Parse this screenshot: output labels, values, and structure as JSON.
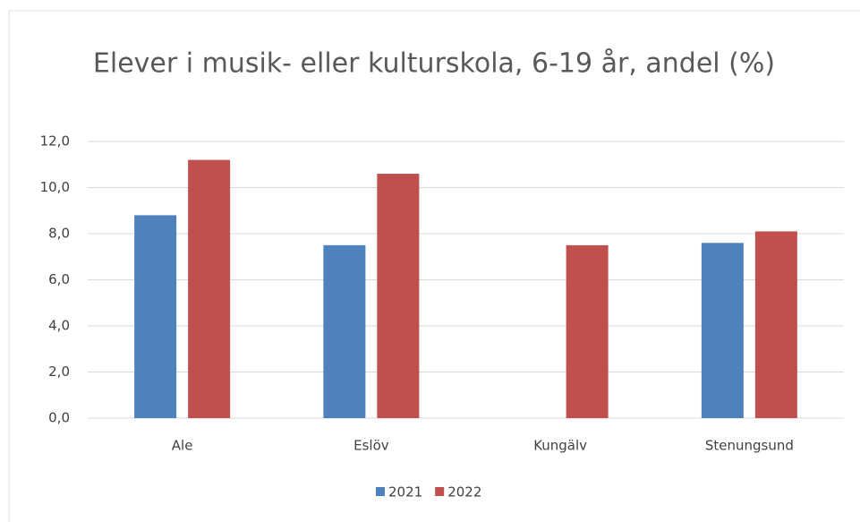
{
  "chart_data": {
    "type": "bar",
    "title": "Elever i musik- eller kulturskola, 6-19 år, andel (%)",
    "categories": [
      "Ale",
      "Eslöv",
      "Kungälv",
      "Stenungsund"
    ],
    "series": [
      {
        "name": "2021",
        "color": "#4f81bd",
        "values": [
          8.8,
          7.5,
          null,
          7.6
        ]
      },
      {
        "name": "2022",
        "color": "#c0504d",
        "values": [
          11.2,
          10.6,
          7.5,
          8.1
        ]
      }
    ],
    "ylim": [
      0,
      12
    ],
    "yticks": [
      {
        "value": 0,
        "label": "0,0"
      },
      {
        "value": 2,
        "label": "2,0"
      },
      {
        "value": 4,
        "label": "4,0"
      },
      {
        "value": 6,
        "label": "6,0"
      },
      {
        "value": 8,
        "label": "8,0"
      },
      {
        "value": 10,
        "label": "10,0"
      },
      {
        "value": 12,
        "label": "12,0"
      }
    ],
    "grid": true,
    "legend": "bottom"
  }
}
